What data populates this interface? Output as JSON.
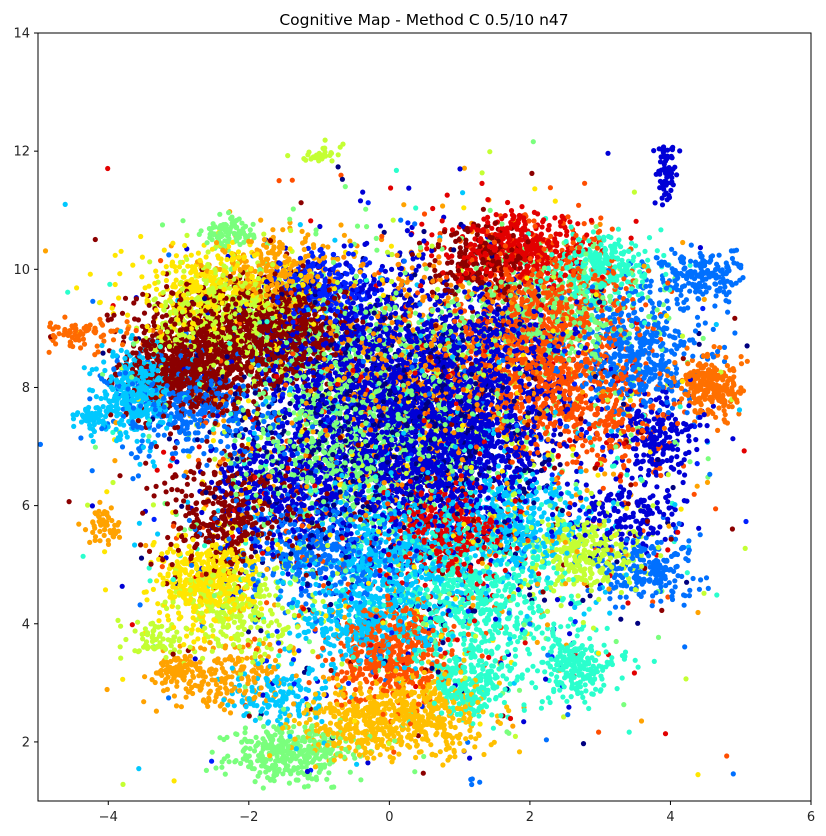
{
  "chart_data": {
    "type": "scatter",
    "title": "Cognitive Map - Method C 0.5/10 n47",
    "xlabel": "",
    "ylabel": "",
    "xlim": [
      -5,
      6
    ],
    "ylim": [
      1,
      14
    ],
    "xticks": [
      -4,
      -2,
      0,
      2,
      4,
      6
    ],
    "yticks": [
      2,
      4,
      6,
      8,
      10,
      12,
      14
    ],
    "xtick_labels": [
      "−4",
      "−2",
      "0",
      "2",
      "4",
      "6"
    ],
    "ytick_labels": [
      "2",
      "4",
      "6",
      "8",
      "10",
      "12",
      "14"
    ],
    "grid": false,
    "legend": "none",
    "colormap": "jet",
    "palette": [
      "#00007f",
      "#0000d6",
      "#0020ff",
      "#0070ff",
      "#00c8ff",
      "#2affcd",
      "#7aff7d",
      "#c4ff33",
      "#ffe600",
      "#ffa200",
      "#ff4e00",
      "#e20000",
      "#8b0000"
    ],
    "point_radius_data_note": "dense clusters of ~4px dots",
    "series": [
      {
        "cx": -2.6,
        "cy": 8.6,
        "sx": 0.55,
        "sy": 0.55,
        "n": 900,
        "color": "#8b0000"
      },
      {
        "cx": -1.5,
        "cy": 9.0,
        "sx": 0.45,
        "sy": 0.4,
        "n": 700,
        "color": "#8b0000"
      },
      {
        "cx": -3.0,
        "cy": 8.3,
        "sx": 0.3,
        "sy": 0.3,
        "n": 250,
        "color": "#8b0000"
      },
      {
        "cx": -2.2,
        "cy": 9.2,
        "sx": 0.6,
        "sy": 0.5,
        "n": 500,
        "color": "#c4ff33"
      },
      {
        "cx": -2.6,
        "cy": 9.6,
        "sx": 0.6,
        "sy": 0.4,
        "n": 350,
        "color": "#ffe600"
      },
      {
        "cx": -1.6,
        "cy": 9.9,
        "sx": 0.5,
        "sy": 0.3,
        "n": 300,
        "color": "#ffa200"
      },
      {
        "cx": -3.6,
        "cy": 7.9,
        "sx": 0.25,
        "sy": 0.35,
        "n": 350,
        "color": "#00c8ff"
      },
      {
        "cx": -4.2,
        "cy": 7.5,
        "sx": 0.12,
        "sy": 0.1,
        "n": 60,
        "color": "#00c8ff"
      },
      {
        "cx": -2.8,
        "cy": 7.7,
        "sx": 0.6,
        "sy": 0.45,
        "n": 400,
        "color": "#0070ff"
      },
      {
        "cx": -2.3,
        "cy": 10.6,
        "sx": 0.18,
        "sy": 0.12,
        "n": 90,
        "color": "#7aff7d"
      },
      {
        "cx": -4.4,
        "cy": 8.9,
        "sx": 0.35,
        "sy": 0.12,
        "n": 80,
        "color": "#ff6a00"
      },
      {
        "cx": -4.05,
        "cy": 5.65,
        "sx": 0.12,
        "sy": 0.15,
        "n": 50,
        "color": "#ffa200"
      },
      {
        "cx": -0.3,
        "cy": 8.4,
        "sx": 0.8,
        "sy": 0.9,
        "n": 1100,
        "color": "#0000d6"
      },
      {
        "cx": 0.6,
        "cy": 7.2,
        "sx": 0.8,
        "sy": 0.8,
        "n": 900,
        "color": "#0000d6"
      },
      {
        "cx": -0.2,
        "cy": 8.0,
        "sx": 1.0,
        "sy": 0.9,
        "n": 700,
        "color": "#7aff7d"
      },
      {
        "cx": 0.1,
        "cy": 7.6,
        "sx": 1.0,
        "sy": 1.0,
        "n": 600,
        "color": "#00007f"
      },
      {
        "cx": -0.9,
        "cy": 9.7,
        "sx": 0.4,
        "sy": 0.3,
        "n": 250,
        "color": "#0020ff"
      },
      {
        "cx": 0.5,
        "cy": 8.3,
        "sx": 0.9,
        "sy": 1.0,
        "n": 500,
        "color": "#ff8c00"
      },
      {
        "cx": 1.9,
        "cy": 10.3,
        "sx": 0.5,
        "sy": 0.3,
        "n": 450,
        "color": "#e20000"
      },
      {
        "cx": 1.3,
        "cy": 10.2,
        "sx": 0.35,
        "sy": 0.3,
        "n": 200,
        "color": "#8b0000"
      },
      {
        "cx": 2.3,
        "cy": 9.5,
        "sx": 0.6,
        "sy": 0.6,
        "n": 500,
        "color": "#ff4e00"
      },
      {
        "cx": 2.1,
        "cy": 8.4,
        "sx": 0.6,
        "sy": 0.6,
        "n": 500,
        "color": "#ff4e00"
      },
      {
        "cx": 2.4,
        "cy": 9.3,
        "sx": 0.6,
        "sy": 0.5,
        "n": 350,
        "color": "#7aff7d"
      },
      {
        "cx": 3.0,
        "cy": 10.0,
        "sx": 0.4,
        "sy": 0.3,
        "n": 300,
        "color": "#2affcd"
      },
      {
        "cx": 3.5,
        "cy": 8.6,
        "sx": 0.5,
        "sy": 0.5,
        "n": 450,
        "color": "#0070ff"
      },
      {
        "cx": 4.4,
        "cy": 9.9,
        "sx": 0.35,
        "sy": 0.2,
        "n": 180,
        "color": "#0070ff"
      },
      {
        "cx": 4.55,
        "cy": 8.0,
        "sx": 0.25,
        "sy": 0.25,
        "n": 250,
        "color": "#ff7000"
      },
      {
        "cx": 3.8,
        "cy": 7.2,
        "sx": 0.3,
        "sy": 0.35,
        "n": 200,
        "color": "#0000d6"
      },
      {
        "cx": 3.95,
        "cy": 11.7,
        "sx": 0.08,
        "sy": 0.3,
        "n": 70,
        "color": "#0000d6"
      },
      {
        "cx": 3.0,
        "cy": 7.6,
        "sx": 0.5,
        "sy": 0.5,
        "n": 300,
        "color": "#ff4e00"
      },
      {
        "cx": 1.4,
        "cy": 7.6,
        "sx": 0.6,
        "sy": 0.6,
        "n": 350,
        "color": "#0000d6"
      },
      {
        "cx": 1.6,
        "cy": 8.9,
        "sx": 0.5,
        "sy": 0.4,
        "n": 250,
        "color": "#0000d6"
      },
      {
        "cx": 0.5,
        "cy": 6.6,
        "sx": 0.7,
        "sy": 0.5,
        "n": 400,
        "color": "#0000d6"
      },
      {
        "cx": 0.2,
        "cy": 5.2,
        "sx": 0.6,
        "sy": 0.6,
        "n": 500,
        "color": "#00c8ff"
      },
      {
        "cx": 1.3,
        "cy": 4.5,
        "sx": 0.6,
        "sy": 0.7,
        "n": 600,
        "color": "#2affcd"
      },
      {
        "cx": 1.8,
        "cy": 5.7,
        "sx": 0.5,
        "sy": 0.4,
        "n": 350,
        "color": "#00c8ff"
      },
      {
        "cx": 0.8,
        "cy": 5.5,
        "sx": 0.4,
        "sy": 0.4,
        "n": 350,
        "color": "#e20000"
      },
      {
        "cx": 2.8,
        "cy": 5.2,
        "sx": 0.4,
        "sy": 0.3,
        "n": 300,
        "color": "#c4ff33"
      },
      {
        "cx": 3.7,
        "cy": 4.9,
        "sx": 0.35,
        "sy": 0.3,
        "n": 200,
        "color": "#0070ff"
      },
      {
        "cx": 3.4,
        "cy": 5.9,
        "sx": 0.4,
        "sy": 0.3,
        "n": 150,
        "color": "#0000d6"
      },
      {
        "cx": 2.7,
        "cy": 3.3,
        "sx": 0.3,
        "sy": 0.3,
        "n": 220,
        "color": "#2affcd"
      },
      {
        "cx": 0.0,
        "cy": 3.5,
        "sx": 0.4,
        "sy": 0.4,
        "n": 450,
        "color": "#ff4e00"
      },
      {
        "cx": 0.4,
        "cy": 2.5,
        "sx": 0.5,
        "sy": 0.35,
        "n": 450,
        "color": "#ffbf00"
      },
      {
        "cx": -0.4,
        "cy": 4.0,
        "sx": 0.5,
        "sy": 0.4,
        "n": 350,
        "color": "#00c8ff"
      },
      {
        "cx": 1.1,
        "cy": 3.0,
        "sx": 0.3,
        "sy": 0.3,
        "n": 250,
        "color": "#2affcd"
      },
      {
        "cx": -1.0,
        "cy": 5.2,
        "sx": 0.6,
        "sy": 0.5,
        "n": 400,
        "color": "#0070ff"
      },
      {
        "cx": -1.4,
        "cy": 6.2,
        "sx": 0.6,
        "sy": 0.5,
        "n": 350,
        "color": "#0000d6"
      },
      {
        "cx": -0.8,
        "cy": 6.6,
        "sx": 0.6,
        "sy": 0.5,
        "n": 300,
        "color": "#7aff7d"
      },
      {
        "cx": -2.6,
        "cy": 4.7,
        "sx": 0.35,
        "sy": 0.4,
        "n": 450,
        "color": "#ffe600"
      },
      {
        "cx": -2.3,
        "cy": 5.8,
        "sx": 0.5,
        "sy": 0.5,
        "n": 350,
        "color": "#8b0000"
      },
      {
        "cx": -2.1,
        "cy": 4.2,
        "sx": 0.45,
        "sy": 0.4,
        "n": 250,
        "color": "#c4ff33"
      },
      {
        "cx": -2.4,
        "cy": 3.1,
        "sx": 0.5,
        "sy": 0.3,
        "n": 200,
        "color": "#ffa200"
      },
      {
        "cx": -1.6,
        "cy": 2.8,
        "sx": 0.4,
        "sy": 0.3,
        "n": 150,
        "color": "#00c8ff"
      },
      {
        "cx": -1.4,
        "cy": 1.8,
        "sx": 0.4,
        "sy": 0.25,
        "n": 350,
        "color": "#7aff7d"
      },
      {
        "cx": -0.5,
        "cy": 2.3,
        "sx": 0.4,
        "sy": 0.3,
        "n": 250,
        "color": "#ffbf00"
      },
      {
        "cx": -3.3,
        "cy": 3.7,
        "sx": 0.2,
        "sy": 0.15,
        "n": 60,
        "color": "#c4ff33"
      },
      {
        "cx": -3.1,
        "cy": 3.2,
        "sx": 0.2,
        "sy": 0.1,
        "n": 50,
        "color": "#ffa200"
      },
      {
        "cx": -1.0,
        "cy": 11.95,
        "sx": 0.15,
        "sy": 0.08,
        "n": 30,
        "color": "#c4ff33"
      },
      {
        "cx": 1.2,
        "cy": 1.4,
        "sx": 0.05,
        "sy": 0.1,
        "n": 4,
        "color": "#0070ff"
      }
    ]
  }
}
